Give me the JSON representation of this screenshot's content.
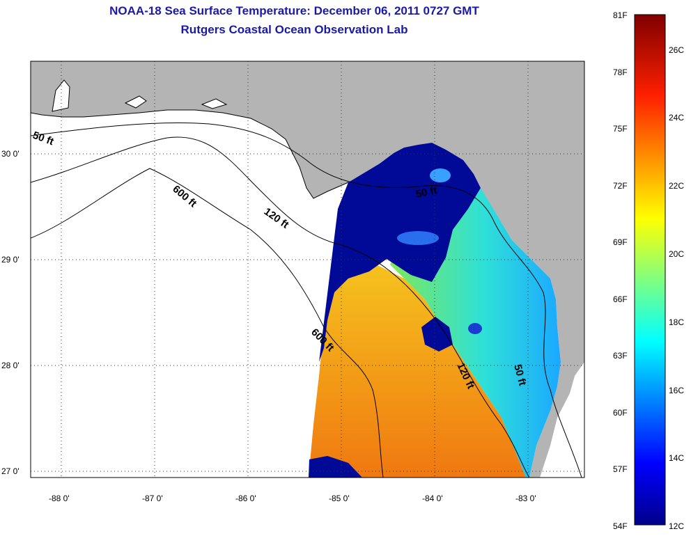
{
  "header": {
    "title_line1": "NOAA-18 Sea Surface Temperature:  December 06, 2011 0727 GMT",
    "title_line2": "Rutgers Coastal Ocean Observation Lab"
  },
  "map": {
    "lon_ticks": [
      "-88 0'",
      "-87 0'",
      "-86 0'",
      "-85 0'",
      "-84 0'",
      "-83 0'"
    ],
    "lat_ticks": [
      "30 0'",
      "29 0'",
      "28 0'",
      "27 0'"
    ],
    "contours": [
      "50 ft",
      "600 ft",
      "120 ft",
      "50 ft",
      "600 ft",
      "120 ft",
      "50 ft"
    ],
    "colors": {
      "land": "#b4b4b4",
      "ocean_nodata": "#ffffff",
      "cold": "#000a96",
      "warm": "#f08c14"
    }
  },
  "colorbar": {
    "fahrenheit": [
      "81F",
      "78F",
      "75F",
      "72F",
      "69F",
      "66F",
      "63F",
      "60F",
      "57F",
      "54F"
    ],
    "celsius": [
      "26C",
      "24C",
      "22C",
      "20C",
      "18C",
      "16C",
      "14C",
      "12C"
    ],
    "gradient": [
      "#000080",
      "#0000ff",
      "#00ffff",
      "#ffff00",
      "#ff0000",
      "#800000"
    ]
  }
}
